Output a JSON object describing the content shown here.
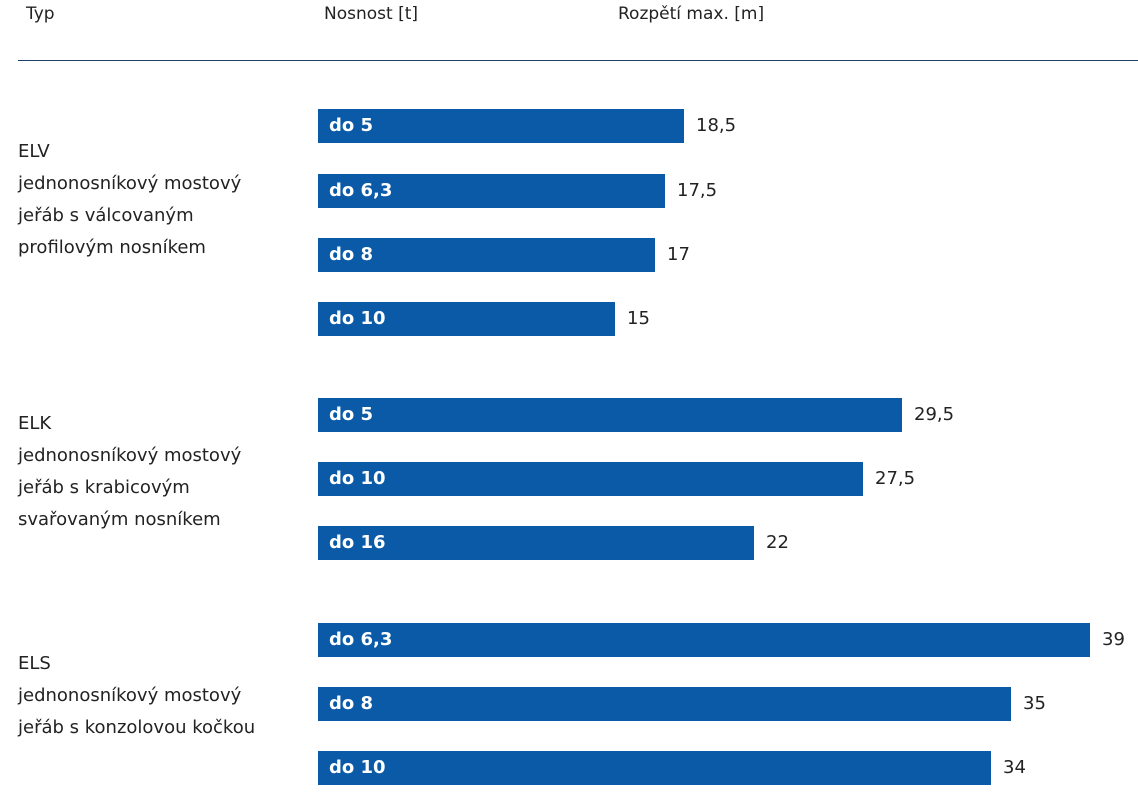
{
  "headers": {
    "type": "Typ",
    "capacity": "Nosnost [t]",
    "span": "Rozpětí max. [m]"
  },
  "chart_data": {
    "type": "bar",
    "orientation": "horizontal",
    "title": "",
    "xlabel": "Rozpětí max. [m]",
    "ylabel": "Nosnost [t]",
    "xlim": [
      0,
      39
    ],
    "groups": [
      {
        "name": "ELV",
        "description": [
          "jednonosníkový mostový",
          "jeřáb s válcovaným",
          "profilovým nosníkem"
        ],
        "bars": [
          {
            "label": "do 5",
            "value": 18.5,
            "value_text": "18,5"
          },
          {
            "label": "do 6,3",
            "value": 17.5,
            "value_text": "17,5"
          },
          {
            "label": "do 8",
            "value": 17,
            "value_text": "17"
          },
          {
            "label": "do 10",
            "value": 15,
            "value_text": "15"
          }
        ]
      },
      {
        "name": "ELK",
        "description": [
          "jednonosníkový mostový",
          "jeřáb s krabicovým",
          "svařovaným nosníkem"
        ],
        "bars": [
          {
            "label": "do 5",
            "value": 29.5,
            "value_text": "29,5"
          },
          {
            "label": "do 10",
            "value": 27.5,
            "value_text": "27,5"
          },
          {
            "label": "do 16",
            "value": 22,
            "value_text": "22"
          }
        ]
      },
      {
        "name": "ELS",
        "description": [
          "jednonosníkový mostový",
          "jeřáb s konzolovou kočkou"
        ],
        "bars": [
          {
            "label": "do 6,3",
            "value": 39,
            "value_text": "39"
          },
          {
            "label": "do 8",
            "value": 35,
            "value_text": "35"
          },
          {
            "label": "do 10",
            "value": 34,
            "value_text": "34"
          }
        ]
      }
    ],
    "colors": {
      "bar": "#0a5aa8",
      "bar_text": "#ffffff"
    }
  }
}
